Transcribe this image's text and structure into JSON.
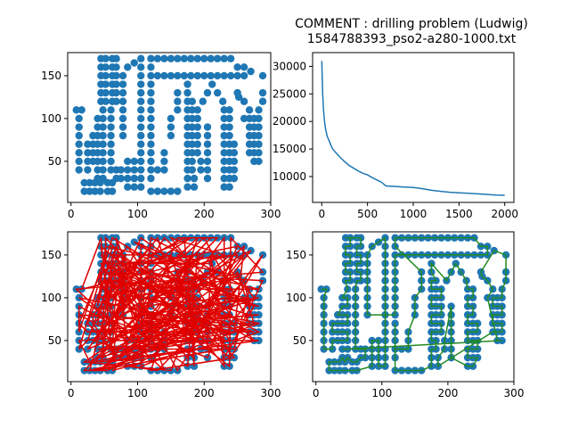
{
  "figure": {
    "title_line1": "COMMENT : drilling problem (Ludwig)",
    "title_line2": "1584788393_pso2-a280-1000.txt"
  },
  "colors": {
    "points": "#1f77b4",
    "convergence": "#1f77b4",
    "random_tour": "#e00000",
    "optimized_tour": "#228b22"
  },
  "chart_data": [
    {
      "type": "scatter",
      "id": "points",
      "xlim": [
        -5,
        300
      ],
      "ylim": [
        2,
        177
      ],
      "xticks": [
        0,
        100,
        200,
        300
      ],
      "yticks": [
        50,
        100,
        150
      ],
      "tour": "none"
    },
    {
      "type": "line",
      "id": "convergence",
      "xlim": [
        -100,
        2100
      ],
      "ylim": [
        5300,
        32500
      ],
      "xticks": [
        0,
        500,
        1000,
        1500,
        2000
      ],
      "yticks": [
        10000,
        15000,
        20000,
        25000,
        30000
      ],
      "x": [
        0,
        10,
        20,
        30,
        40,
        50,
        60,
        80,
        100,
        120,
        150,
        200,
        250,
        300,
        350,
        400,
        450,
        500,
        550,
        600,
        650,
        700,
        800,
        900,
        1000,
        1100,
        1200,
        1300,
        1400,
        1500,
        1600,
        1700,
        1800,
        1900,
        2000
      ],
      "y": [
        31000,
        25000,
        22000,
        20000,
        18800,
        18000,
        17300,
        16500,
        15700,
        15000,
        14400,
        13500,
        12700,
        12000,
        11500,
        11000,
        10600,
        10300,
        9800,
        9400,
        9000,
        8300,
        8200,
        8100,
        8000,
        7800,
        7500,
        7300,
        7150,
        7050,
        6950,
        6850,
        6750,
        6650,
        6600
      ]
    },
    {
      "type": "scatter",
      "id": "random_tour",
      "xlim": [
        -5,
        300
      ],
      "ylim": [
        2,
        177
      ],
      "xticks": [
        0,
        100,
        200,
        300
      ],
      "yticks": [
        50,
        100,
        150
      ],
      "tour": "random"
    },
    {
      "type": "scatter",
      "id": "optimized_tour",
      "xlim": [
        -5,
        300
      ],
      "ylim": [
        2,
        177
      ],
      "xticks": [
        0,
        100,
        200,
        300
      ],
      "yticks": [
        50,
        100,
        150
      ],
      "tour": "optimized"
    }
  ],
  "points": [
    [
      8,
      110
    ],
    [
      16,
      110
    ],
    [
      12,
      100
    ],
    [
      12,
      90
    ],
    [
      12,
      80
    ],
    [
      12,
      70
    ],
    [
      12,
      60
    ],
    [
      12,
      50
    ],
    [
      12,
      40
    ],
    [
      20,
      25
    ],
    [
      20,
      15
    ],
    [
      28,
      25
    ],
    [
      28,
      15
    ],
    [
      36,
      25
    ],
    [
      36,
      15
    ],
    [
      44,
      25
    ],
    [
      44,
      15
    ],
    [
      25,
      70
    ],
    [
      25,
      60
    ],
    [
      25,
      50
    ],
    [
      25,
      40
    ],
    [
      33,
      80
    ],
    [
      33,
      70
    ],
    [
      33,
      60
    ],
    [
      33,
      50
    ],
    [
      40,
      100
    ],
    [
      40,
      90
    ],
    [
      40,
      80
    ],
    [
      40,
      70
    ],
    [
      40,
      60
    ],
    [
      40,
      50
    ],
    [
      40,
      40
    ],
    [
      40,
      30
    ],
    [
      48,
      110
    ],
    [
      48,
      100
    ],
    [
      48,
      90
    ],
    [
      48,
      80
    ],
    [
      48,
      70
    ],
    [
      48,
      60
    ],
    [
      48,
      50
    ],
    [
      48,
      40
    ],
    [
      48,
      30
    ],
    [
      55,
      25
    ],
    [
      55,
      15
    ],
    [
      62,
      25
    ],
    [
      62,
      15
    ],
    [
      68,
      40
    ],
    [
      68,
      30
    ],
    [
      75,
      40
    ],
    [
      75,
      30
    ],
    [
      60,
      110
    ],
    [
      60,
      100
    ],
    [
      60,
      90
    ],
    [
      60,
      80
    ],
    [
      60,
      70
    ],
    [
      60,
      60
    ],
    [
      60,
      50
    ],
    [
      60,
      40
    ],
    [
      45,
      170
    ],
    [
      45,
      160
    ],
    [
      45,
      150
    ],
    [
      45,
      140
    ],
    [
      45,
      130
    ],
    [
      45,
      120
    ],
    [
      52,
      170
    ],
    [
      52,
      160
    ],
    [
      52,
      150
    ],
    [
      52,
      140
    ],
    [
      52,
      130
    ],
    [
      52,
      120
    ],
    [
      62,
      170
    ],
    [
      62,
      160
    ],
    [
      62,
      150
    ],
    [
      62,
      140
    ],
    [
      62,
      130
    ],
    [
      62,
      120
    ],
    [
      68,
      170
    ],
    [
      68,
      160
    ],
    [
      68,
      150
    ],
    [
      68,
      140
    ],
    [
      68,
      130
    ],
    [
      68,
      120
    ],
    [
      78,
      150
    ],
    [
      78,
      140
    ],
    [
      78,
      130
    ],
    [
      78,
      120
    ],
    [
      78,
      110
    ],
    [
      78,
      100
    ],
    [
      78,
      90
    ],
    [
      78,
      80
    ],
    [
      85,
      160
    ],
    [
      85,
      50
    ],
    [
      85,
      40
    ],
    [
      85,
      30
    ],
    [
      85,
      20
    ],
    [
      95,
      165
    ],
    [
      95,
      50
    ],
    [
      95,
      40
    ],
    [
      95,
      30
    ],
    [
      95,
      20
    ],
    [
      105,
      170
    ],
    [
      105,
      160
    ],
    [
      105,
      150
    ],
    [
      105,
      140
    ],
    [
      105,
      130
    ],
    [
      105,
      120
    ],
    [
      105,
      110
    ],
    [
      105,
      100
    ],
    [
      105,
      90
    ],
    [
      105,
      80
    ],
    [
      105,
      70
    ],
    [
      105,
      60
    ],
    [
      105,
      50
    ],
    [
      105,
      40
    ],
    [
      105,
      30
    ],
    [
      105,
      20
    ],
    [
      120,
      170
    ],
    [
      130,
      170
    ],
    [
      140,
      170
    ],
    [
      150,
      170
    ],
    [
      160,
      170
    ],
    [
      170,
      170
    ],
    [
      180,
      170
    ],
    [
      190,
      170
    ],
    [
      200,
      170
    ],
    [
      210,
      170
    ],
    [
      220,
      170
    ],
    [
      230,
      170
    ],
    [
      240,
      170
    ],
    [
      130,
      150
    ],
    [
      140,
      150
    ],
    [
      150,
      150
    ],
    [
      160,
      150
    ],
    [
      170,
      150
    ],
    [
      180,
      150
    ],
    [
      190,
      150
    ],
    [
      200,
      150
    ],
    [
      210,
      150
    ],
    [
      220,
      150
    ],
    [
      230,
      150
    ],
    [
      240,
      150
    ],
    [
      250,
      150
    ],
    [
      260,
      150
    ],
    [
      120,
      160
    ],
    [
      120,
      150
    ],
    [
      120,
      140
    ],
    [
      120,
      130
    ],
    [
      120,
      120
    ],
    [
      120,
      110
    ],
    [
      120,
      100
    ],
    [
      120,
      90
    ],
    [
      120,
      80
    ],
    [
      120,
      70
    ],
    [
      120,
      60
    ],
    [
      120,
      50
    ],
    [
      120,
      40
    ],
    [
      120,
      30
    ],
    [
      120,
      15
    ],
    [
      130,
      15
    ],
    [
      140,
      15
    ],
    [
      150,
      15
    ],
    [
      160,
      15
    ],
    [
      130,
      40
    ],
    [
      140,
      40
    ],
    [
      140,
      50
    ],
    [
      140,
      60
    ],
    [
      150,
      80
    ],
    [
      150,
      90
    ],
    [
      150,
      100
    ],
    [
      160,
      110
    ],
    [
      160,
      120
    ],
    [
      160,
      130
    ],
    [
      175,
      140
    ],
    [
      175,
      130
    ],
    [
      175,
      120
    ],
    [
      175,
      110
    ],
    [
      175,
      100
    ],
    [
      175,
      90
    ],
    [
      175,
      80
    ],
    [
      175,
      70
    ],
    [
      175,
      60
    ],
    [
      175,
      50
    ],
    [
      175,
      40
    ],
    [
      175,
      30
    ],
    [
      175,
      20
    ],
    [
      182,
      120
    ],
    [
      182,
      110
    ],
    [
      182,
      100
    ],
    [
      182,
      90
    ],
    [
      182,
      80
    ],
    [
      182,
      70
    ],
    [
      182,
      60
    ],
    [
      182,
      50
    ],
    [
      182,
      40
    ],
    [
      190,
      110
    ],
    [
      190,
      100
    ],
    [
      190,
      90
    ],
    [
      190,
      80
    ],
    [
      190,
      70
    ],
    [
      190,
      60
    ],
    [
      198,
      120
    ],
    [
      205,
      130
    ],
    [
      212,
      140
    ],
    [
      220,
      130
    ],
    [
      228,
      120
    ],
    [
      205,
      90
    ],
    [
      205,
      80
    ],
    [
      205,
      70
    ],
    [
      205,
      60
    ],
    [
      205,
      50
    ],
    [
      205,
      40
    ],
    [
      205,
      30
    ],
    [
      195,
      50
    ],
    [
      195,
      40
    ],
    [
      185,
      30
    ],
    [
      185,
      20
    ],
    [
      230,
      110
    ],
    [
      230,
      100
    ],
    [
      230,
      90
    ],
    [
      230,
      80
    ],
    [
      230,
      70
    ],
    [
      230,
      60
    ],
    [
      230,
      50
    ],
    [
      230,
      40
    ],
    [
      230,
      30
    ],
    [
      230,
      20
    ],
    [
      238,
      110
    ],
    [
      238,
      100
    ],
    [
      238,
      90
    ],
    [
      238,
      80
    ],
    [
      238,
      70
    ],
    [
      238,
      60
    ],
    [
      238,
      50
    ],
    [
      238,
      40
    ],
    [
      238,
      30
    ],
    [
      238,
      20
    ],
    [
      245,
      70
    ],
    [
      245,
      60
    ],
    [
      245,
      50
    ],
    [
      245,
      40
    ],
    [
      245,
      30
    ],
    [
      252,
      125
    ],
    [
      260,
      120
    ],
    [
      268,
      110
    ],
    [
      268,
      100
    ],
    [
      268,
      90
    ],
    [
      268,
      80
    ],
    [
      268,
      70
    ],
    [
      268,
      60
    ],
    [
      275,
      100
    ],
    [
      275,
      90
    ],
    [
      275,
      80
    ],
    [
      275,
      70
    ],
    [
      275,
      60
    ],
    [
      275,
      50
    ],
    [
      282,
      110
    ],
    [
      282,
      100
    ],
    [
      282,
      90
    ],
    [
      282,
      80
    ],
    [
      282,
      70
    ],
    [
      282,
      60
    ],
    [
      282,
      50
    ],
    [
      288,
      150
    ],
    [
      288,
      130
    ],
    [
      288,
      120
    ],
    [
      270,
      155
    ],
    [
      260,
      160
    ],
    [
      250,
      160
    ],
    [
      250,
      130
    ],
    [
      260,
      100
    ]
  ]
}
